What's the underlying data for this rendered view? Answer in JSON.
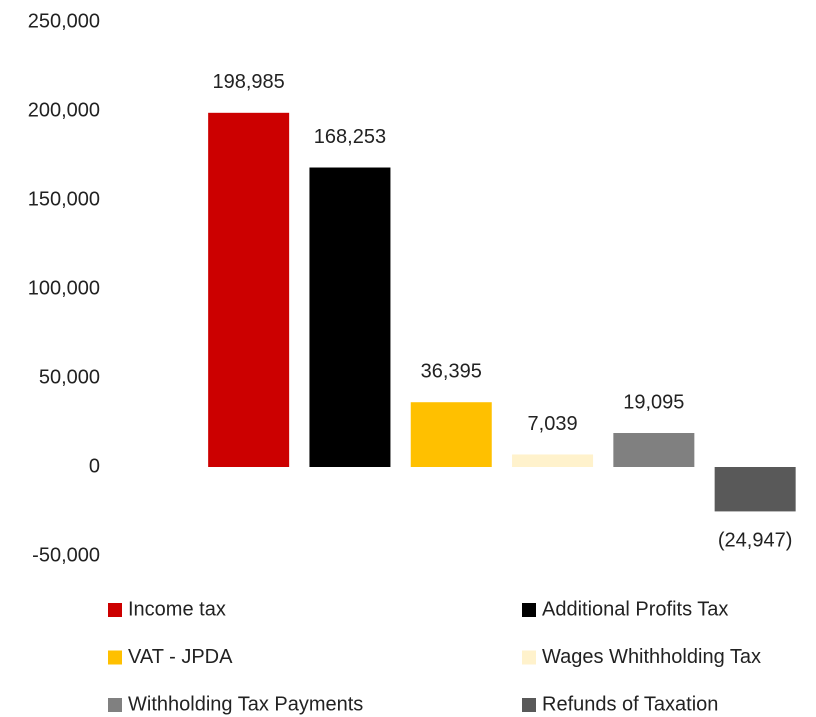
{
  "chart_data": {
    "type": "bar",
    "categories": [
      "Income tax",
      "Additional Profits Tax",
      "VAT - JPDA",
      "Wages Whithholding Tax",
      "Withholding Tax Payments",
      "Refunds of Taxation"
    ],
    "values": [
      198985,
      168253,
      36395,
      7039,
      19095,
      -24947
    ],
    "value_labels": [
      "198,985",
      "168,253",
      "36,395",
      "7,039",
      "19,095",
      "(24,947)"
    ],
    "colors": [
      "#cc0000",
      "#000000",
      "#ffc000",
      "#fff2cc",
      "#808080",
      "#595959"
    ],
    "ylim": [
      -50000,
      250000
    ],
    "yticks": [
      {
        "value": -50000,
        "label": "-50,000"
      },
      0,
      {
        "value": 50000,
        "label": "50,000"
      },
      {
        "value": 100000,
        "label": "100,000"
      },
      {
        "value": 150000,
        "label": "150,000"
      },
      {
        "value": 200000,
        "label": "200,000"
      },
      {
        "value": 250000,
        "label": "250,000"
      }
    ],
    "grid": false,
    "legend": "bottom"
  }
}
